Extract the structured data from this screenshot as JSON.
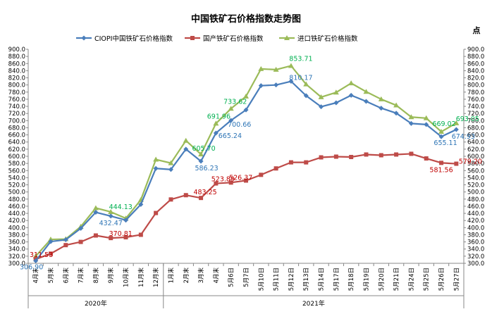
{
  "chart_data": {
    "type": "line",
    "title": "中国铁矿石价格指数走势图",
    "ylabel_right": "点",
    "ylim": [
      300,
      900
    ],
    "ytick_step": 20,
    "grid": false,
    "legend_position": "top",
    "categories": [
      "4月末",
      "5月末",
      "6月末",
      "7月末",
      "8月末",
      "9月末",
      "10月末",
      "11月末",
      "12月末",
      "1月末",
      "2月末",
      "3月末",
      "4月末",
      "5月6日",
      "5月7日",
      "5月10日",
      "5月11日",
      "5月12日",
      "5月13日",
      "5月14日",
      "5月17日",
      "5月18日",
      "5月19日",
      "5月20日",
      "5月21日",
      "5月24日",
      "5月25日",
      "5月26日",
      "5月27日"
    ],
    "category_groups": [
      {
        "label": "2020年",
        "from": 0,
        "to": 8
      },
      {
        "label": "2021年",
        "from": 9,
        "to": 28
      }
    ],
    "series": [
      {
        "name": "CIOPI中国铁矿石价格指数",
        "color": "#4a7ebb",
        "marker": "diamond",
        "label_color": "#2e75b6",
        "values": [
          306.9,
          361,
          366,
          398,
          443,
          432.47,
          421,
          465,
          566,
          563,
          620,
          586.23,
          665.24,
          700.66,
          730,
          798,
          800,
          810.17,
          770,
          739,
          750,
          771,
          754,
          735,
          721,
          692,
          689,
          655.11,
          674.93
        ],
        "labels": [
          {
            "i": 0,
            "text": "306.90"
          },
          {
            "i": 5,
            "text": "432.47"
          },
          {
            "i": 11,
            "text": "586.23"
          },
          {
            "i": 12,
            "text": "665.24"
          },
          {
            "i": 13,
            "text": "700.66"
          },
          {
            "i": 17,
            "text": "810.17"
          },
          {
            "i": 27,
            "text": "655.11"
          },
          {
            "i": 28,
            "text": "674.93"
          }
        ]
      },
      {
        "name": "国产铁矿石价格指数",
        "color": "#be4b48",
        "marker": "square",
        "label_color": "#c00000",
        "values": [
          311.53,
          327,
          351,
          360,
          378,
          370.81,
          373,
          380,
          441,
          479,
          491,
          483.25,
          523.89,
          526.37,
          532,
          548,
          566,
          583,
          583,
          597,
          599,
          598,
          605,
          603,
          605,
          607,
          594,
          581.56,
          579.2
        ],
        "labels": [
          {
            "i": 0,
            "text": "311.53"
          },
          {
            "i": 5,
            "text": "370.81"
          },
          {
            "i": 11,
            "text": "483.25"
          },
          {
            "i": 12,
            "text": "523.89"
          },
          {
            "i": 13,
            "text": "526.37"
          },
          {
            "i": 27,
            "text": "581.56"
          },
          {
            "i": 28,
            "text": "579.20"
          }
        ]
      },
      {
        "name": "进口铁矿石价格指数",
        "color": "#9bbb59",
        "marker": "triangle",
        "label_color": "#00b050",
        "values": [
          320,
          367,
          368,
          403,
          455,
          444.13,
          426,
          478,
          591,
          581,
          644,
          605.7,
          691.96,
          733.62,
          768,
          845,
          843,
          853.71,
          802,
          766,
          779,
          805,
          781,
          760,
          743,
          710,
          707,
          669.02,
          693.05
        ],
        "labels": [
          {
            "i": 5,
            "text": "444.13"
          },
          {
            "i": 11,
            "text": "605.70"
          },
          {
            "i": 12,
            "text": "691.96"
          },
          {
            "i": 13,
            "text": "733.62"
          },
          {
            "i": 17,
            "text": "853.71"
          },
          {
            "i": 27,
            "text": "669.02"
          },
          {
            "i": 28,
            "text": "693.05"
          }
        ]
      }
    ]
  }
}
